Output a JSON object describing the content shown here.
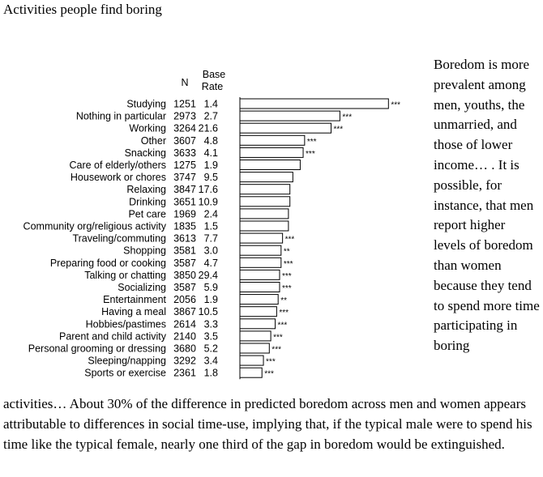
{
  "page_title": "Activities people find boring",
  "side_text": "Boredom is more prevalent among men, youths, the unmarried, and those of lower income… . It is possible, for instance, that men report higher levels of boredom than women because they tend to spend more time participating in boring",
  "bottom_text": "activities… About 30% of the difference in predicted boredom across men and women appears attributable to differences in social time-use, implying that, if the typical male were to spend his time like the typical female, nearly one third of the gap in boredom would be extinguished.",
  "chart_data": {
    "type": "bar",
    "orientation": "horizontal",
    "column_headers": {
      "n": "N",
      "base_rate": "Base Rate"
    },
    "categories": [
      "Studying",
      "Nothing in particular",
      "Working",
      "Other",
      "Snacking",
      "Care of elderly/others",
      "Housework or chores",
      "Relaxing",
      "Drinking",
      "Pet care",
      "Community org/religious activity",
      "Traveling/commuting",
      "Shopping",
      "Preparing food or cooking",
      "Talking or chatting",
      "Socializing",
      "Entertainment",
      "Having a meal",
      "Hobbies/pastimes",
      "Parent and child activity",
      "Personal grooming or dressing",
      "Sleeping/napping",
      "Sports or exercise"
    ],
    "n": [
      "1251",
      "2973",
      "3264",
      "3607",
      "3633",
      "1275",
      "3747",
      "3847",
      "3651",
      "1969",
      "1835",
      "3613",
      "3581",
      "3587",
      "3850",
      "3587",
      "2056",
      "3867",
      "2614",
      "2140",
      "3680",
      "3292",
      "2361"
    ],
    "base_rate": [
      "1.4",
      "2.7",
      "21.6",
      "4.8",
      "4.1",
      "1.9",
      "9.5",
      "17.6",
      "10.9",
      "2.4",
      "1.5",
      "7.7",
      "3.0",
      "4.7",
      "29.4",
      "5.9",
      "1.9",
      "10.5",
      "3.3",
      "3.5",
      "5.2",
      "3.4",
      "1.8"
    ],
    "values": [
      0.505,
      0.34,
      0.31,
      0.22,
      0.215,
      0.205,
      0.18,
      0.17,
      0.17,
      0.165,
      0.165,
      0.145,
      0.14,
      0.14,
      0.135,
      0.135,
      0.13,
      0.125,
      0.12,
      0.105,
      0.1,
      0.08,
      0.075
    ],
    "significance": [
      "***",
      "***",
      "***",
      "***",
      "***",
      "",
      "",
      "",
      "",
      "",
      "",
      "***",
      "**",
      "***",
      "***",
      "***",
      "**",
      "***",
      "***",
      "***",
      "***",
      "***",
      "***"
    ],
    "xlim": [
      0,
      0.55
    ],
    "xlabel": "",
    "ylabel": ""
  }
}
